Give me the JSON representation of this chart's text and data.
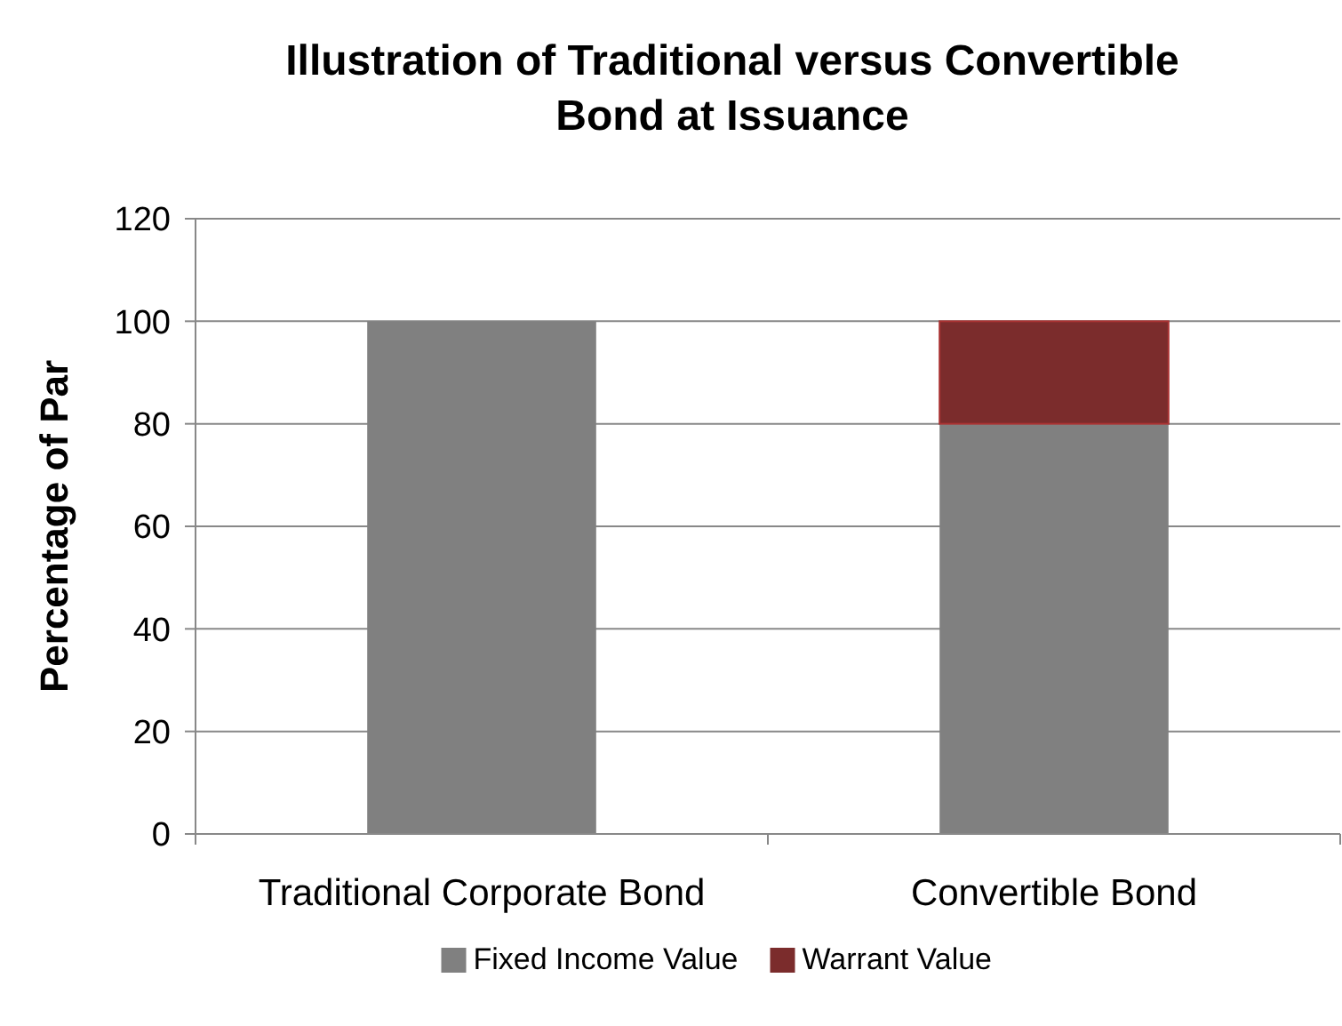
{
  "chart_data": {
    "type": "bar",
    "title": "Illustration of Traditional versus Convertible Bond at Issuance",
    "ylabel": "Percentage of Par",
    "categories": [
      "Traditional Corporate Bond",
      "Convertible Bond"
    ],
    "stacked": true,
    "series": [
      {
        "name": "Fixed Income Value",
        "color": "#808080",
        "values": [
          100,
          80
        ]
      },
      {
        "name": "Warrant Value",
        "color": "#7b2c2c",
        "values": [
          0,
          20
        ]
      }
    ],
    "ylim": [
      0,
      120
    ],
    "yticks": [
      0,
      20,
      40,
      60,
      80,
      100,
      120
    ],
    "grid": "y",
    "legend": "bottom"
  }
}
